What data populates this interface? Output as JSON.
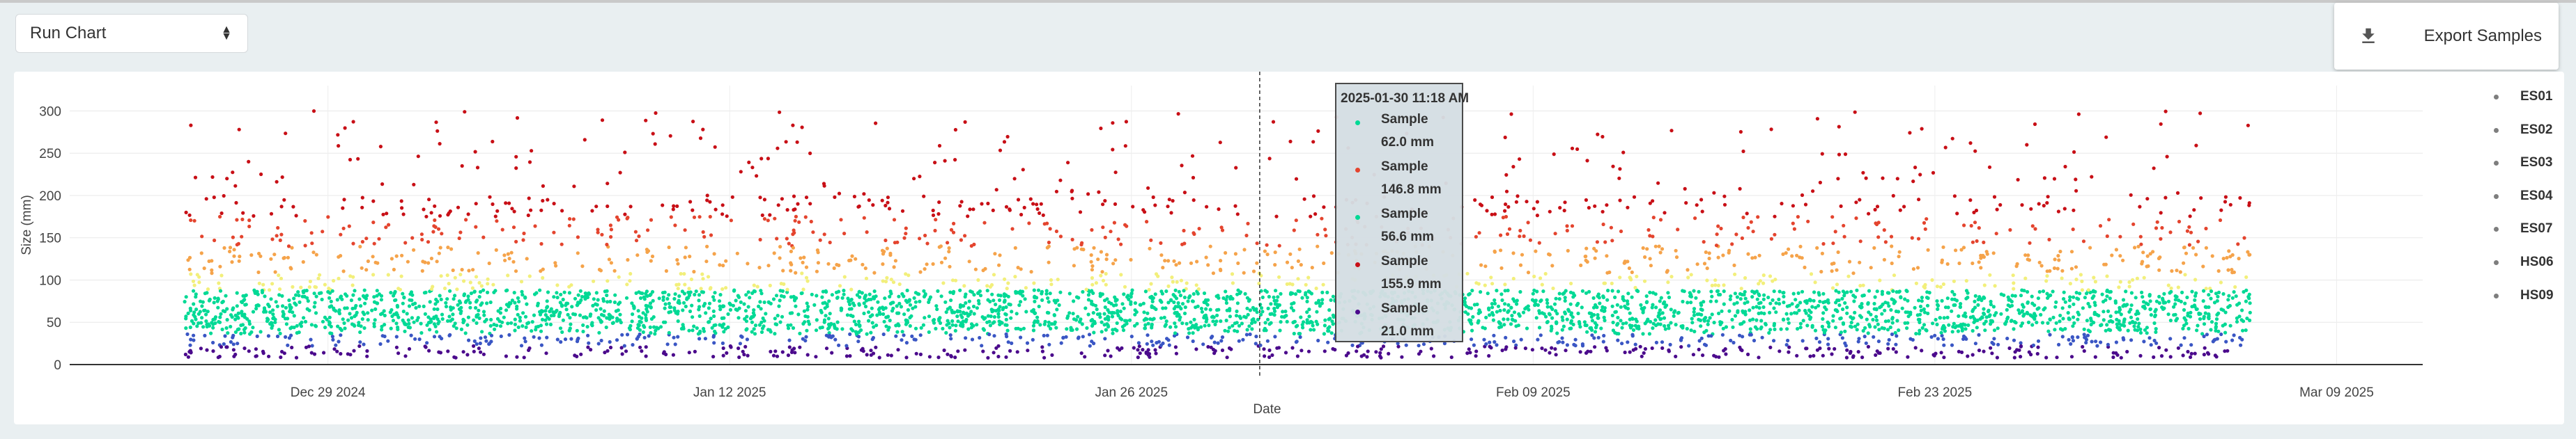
{
  "toolbar": {
    "chart_select_value": "Run Chart",
    "export_label": "Export Samples"
  },
  "chart_data": {
    "type": "scatter",
    "xlabel": "Date",
    "ylabel": "Size (mm)",
    "ylim": [
      0,
      330
    ],
    "yticks": [
      0,
      50,
      100,
      150,
      200,
      250,
      300
    ],
    "xlim": [
      "2024-12-20",
      "2025-03-12"
    ],
    "xticks": [
      "2024-12-29",
      "2025-01-12",
      "2025-01-26",
      "2025-02-09",
      "2025-02-23",
      "2025-03-09"
    ],
    "xtick_labels": [
      "Dec 29 2024",
      "Jan 12 2025",
      "Jan 26 2025",
      "Feb 09 2025",
      "Feb 23 2025",
      "Mar 09 2025"
    ],
    "grid": true,
    "legend_position": "right",
    "data_range": [
      "2024-12-24",
      "2025-03-06"
    ],
    "colorscale": [
      "#4b0a8c",
      "#3a56c4",
      "#00d995",
      "#f2ef7b",
      "#f5a34a",
      "#e4442e",
      "#c80f16"
    ],
    "series": [
      {
        "name": "ES01"
      },
      {
        "name": "ES02"
      },
      {
        "name": "ES03"
      },
      {
        "name": "ES04"
      },
      {
        "name": "ES07"
      },
      {
        "name": "HS06"
      },
      {
        "name": "HS09"
      }
    ],
    "hover_line_x": "2025-01-30 11:18",
    "tooltip": {
      "title": "2025-01-30  11:18 AM",
      "entries": [
        {
          "name": "Sample",
          "value": "62.0 mm",
          "color": "#00d995"
        },
        {
          "name": "Sample",
          "value": "146.8 mm",
          "color": "#e4442e"
        },
        {
          "name": "Sample",
          "value": "56.6 mm",
          "color": "#00d995"
        },
        {
          "name": "Sample",
          "value": "155.9 mm",
          "color": "#c80f16"
        },
        {
          "name": "Sample",
          "value": "21.0 mm",
          "color": "#4b0a8c"
        }
      ]
    }
  }
}
